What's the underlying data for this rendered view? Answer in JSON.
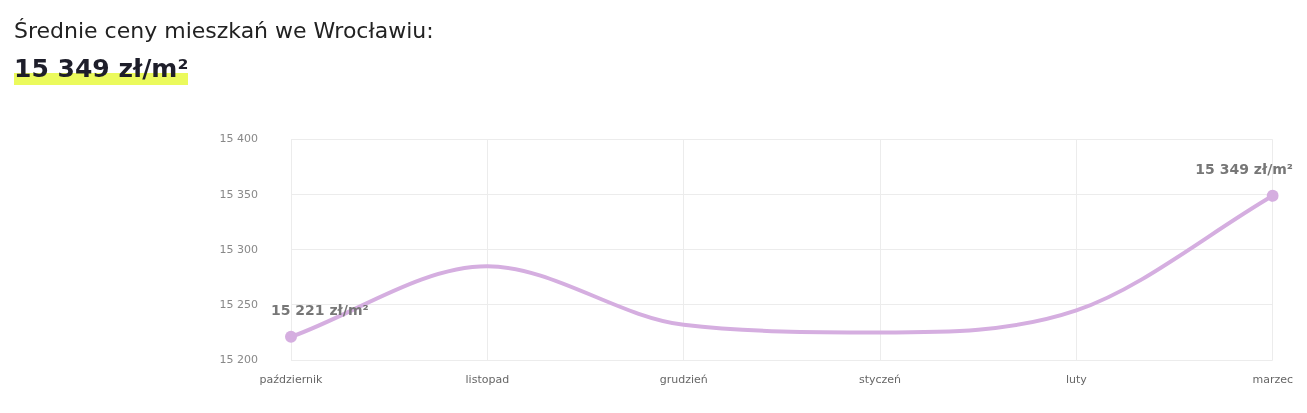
{
  "chart_data": {
    "type": "line",
    "title": "Średnie ceny mieszkań we Wrocławiu:",
    "subtitle": "15 349 zł/m²",
    "categories": [
      "październik",
      "listopad",
      "grudzień",
      "styczeń",
      "luty",
      "marzec"
    ],
    "series": [
      {
        "type": "line",
        "color": "#d5aee0",
        "values": [
          15221,
          15285,
          15232,
          15225,
          15245,
          15349
        ],
        "marker": "none"
      },
      {
        "type": "scatter",
        "x": [
          "październik",
          "marzec"
        ],
        "values": [
          15221,
          15349
        ],
        "color": "#d5aee0",
        "marker": "circle",
        "value_labels": [
          "15 221 zł/m²",
          "15 349 zł/m²"
        ]
      }
    ],
    "ylim": [
      15200,
      15400
    ],
    "yticks": [
      {
        "value": 15200,
        "label": "15 200"
      },
      {
        "value": 15250,
        "label": "15 250"
      },
      {
        "value": 15300,
        "label": "15 300"
      },
      {
        "value": 15350,
        "label": "15 350"
      },
      {
        "value": 15400,
        "label": "15 400"
      }
    ],
    "grid": true
  }
}
